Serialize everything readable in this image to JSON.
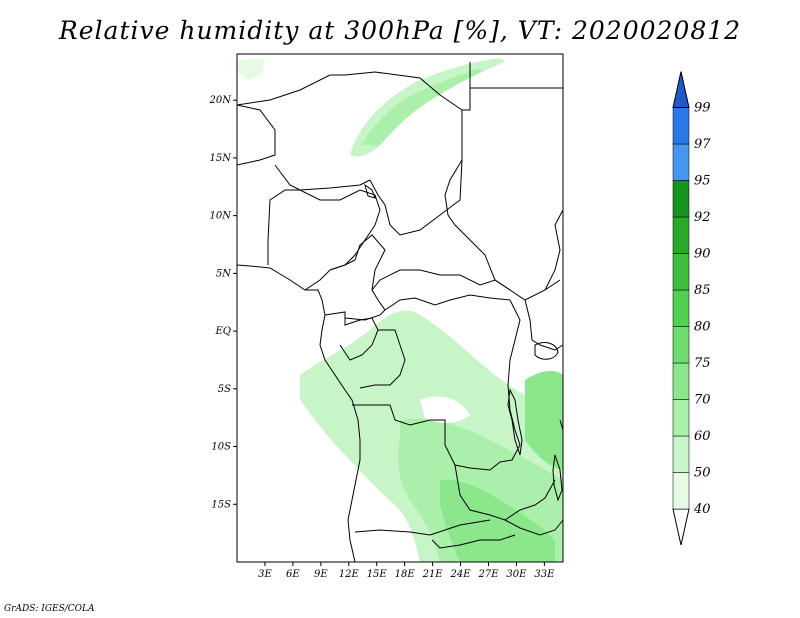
{
  "title": "Relative humidity at 300hPa [%], VT: 2020020812",
  "credit": "GrADS: IGES/COLA",
  "map": {
    "lon_range": [
      0,
      35
    ],
    "lat_range": [
      -20,
      24
    ],
    "lon_ticks": [
      "3E",
      "6E",
      "9E",
      "12E",
      "15E",
      "18E",
      "21E",
      "24E",
      "27E",
      "30E",
      "33E"
    ],
    "lat_ticks": [
      "20N",
      "15N",
      "10N",
      "5N",
      "EQ",
      "5S",
      "10S",
      "15S"
    ],
    "colors": {
      "border": "#000000",
      "frame": "#000000"
    }
  },
  "colorbar": {
    "levels": [
      "40",
      "50",
      "60",
      "70",
      "75",
      "80",
      "85",
      "90",
      "92",
      "95",
      "97",
      "99"
    ],
    "colors": [
      "#ffffff",
      "#e6fae6",
      "#c8f5c8",
      "#aaf0aa",
      "#8ce68c",
      "#6edc6e",
      "#50d250",
      "#3cbe3c",
      "#28aa28",
      "#14961e",
      "#4696f0",
      "#2a78e6",
      "#1e5ac8"
    ]
  }
}
